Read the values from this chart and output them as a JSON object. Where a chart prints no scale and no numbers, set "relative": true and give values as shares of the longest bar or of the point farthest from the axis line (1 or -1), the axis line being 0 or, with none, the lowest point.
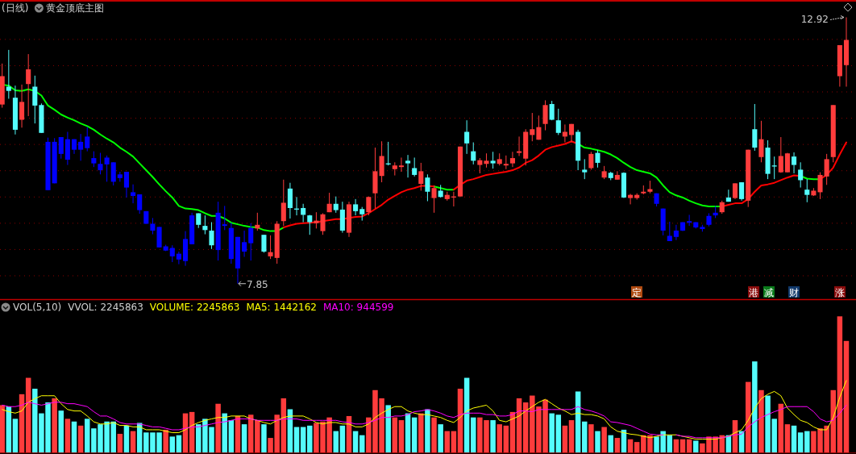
{
  "chart_data": [
    {
      "type": "candlestick",
      "title": "(日线)",
      "subtitle": "黄金顶底主图",
      "categories": [
        null,
        null,
        null,
        null,
        null,
        null,
        null,
        null,
        null,
        null,
        null,
        null,
        null,
        null,
        null,
        null,
        null,
        null,
        null,
        null,
        null,
        null,
        null,
        null,
        null,
        null,
        null,
        null,
        null,
        null,
        null,
        null,
        null,
        null,
        null,
        null,
        null,
        null,
        null,
        null,
        null,
        null,
        null,
        null,
        null,
        null,
        null,
        null,
        null,
        null,
        null,
        null,
        null,
        null,
        null,
        null,
        null,
        null,
        null,
        null,
        null,
        null,
        null,
        null,
        null,
        null,
        null,
        null,
        null,
        null,
        null,
        null,
        null,
        null,
        null,
        null,
        null,
        null,
        null,
        null,
        null,
        null,
        null,
        null,
        null,
        null,
        null,
        null,
        null,
        null,
        null,
        null,
        null,
        null,
        null,
        null,
        null,
        null,
        null,
        null,
        null,
        null,
        null,
        null,
        null,
        null,
        null,
        null,
        null,
        null,
        null,
        null,
        null,
        null,
        null,
        null,
        null,
        null,
        null,
        null,
        null,
        null,
        null,
        null,
        null,
        null,
        null,
        null,
        null,
        null
      ],
      "ohlc": [
        [
          11.26,
          12.04,
          11.2,
          11.8
        ],
        [
          11.6,
          12.3,
          11.37,
          11.52
        ],
        [
          11.39,
          11.62,
          10.69,
          10.78
        ],
        [
          10.97,
          11.64,
          10.82,
          11.31
        ],
        [
          11.65,
          12.22,
          11.04,
          11.93
        ],
        [
          11.6,
          11.81,
          10.9,
          11.24
        ],
        [
          11.25,
          11.28,
          10.72,
          10.72
        ],
        [
          10.55,
          10.63,
          9.63,
          9.63
        ],
        [
          9.76,
          10.62,
          9.76,
          10.55
        ],
        [
          10.64,
          10.64,
          10.23,
          10.32
        ],
        [
          10.21,
          10.74,
          10.11,
          10.6
        ],
        [
          10.6,
          10.6,
          10.32,
          10.4
        ],
        [
          10.4,
          10.7,
          10.19,
          10.55
        ],
        [
          10.65,
          10.83,
          10.37,
          10.43
        ],
        [
          10.24,
          10.37,
          10.07,
          10.14
        ],
        [
          10.13,
          10.34,
          9.93,
          10.01
        ],
        [
          10.25,
          10.29,
          9.79,
          10.12
        ],
        [
          10.16,
          10.16,
          9.72,
          9.79
        ],
        [
          9.86,
          9.98,
          9.79,
          9.93
        ],
        [
          9.98,
          9.98,
          9.49,
          9.68
        ],
        [
          9.52,
          9.74,
          9.38,
          9.59
        ],
        [
          9.55,
          9.55,
          9.18,
          9.25
        ],
        [
          9.23,
          9.23,
          8.99,
          8.99
        ],
        [
          8.99,
          9.1,
          8.79,
          8.86
        ],
        [
          8.93,
          8.93,
          8.54,
          8.54
        ],
        [
          8.48,
          8.59,
          8.47,
          8.56
        ],
        [
          8.53,
          8.58,
          8.26,
          8.37
        ],
        [
          8.42,
          8.46,
          8.22,
          8.31
        ],
        [
          8.28,
          8.85,
          8.19,
          8.7
        ],
        [
          8.6,
          9.2,
          8.6,
          9.15
        ],
        [
          9.19,
          9.19,
          8.91,
          8.97
        ],
        [
          8.95,
          9.15,
          8.79,
          8.87
        ],
        [
          8.86,
          9.02,
          8.51,
          8.58
        ],
        [
          8.49,
          9.41,
          8.29,
          9.2
        ],
        [
          8.98,
          9.33,
          8.87,
          8.95
        ],
        [
          8.91,
          9.01,
          8.23,
          8.32
        ],
        [
          8.14,
          8.74,
          7.85,
          8.74
        ],
        [
          8.64,
          8.86,
          8.36,
          8.46
        ],
        [
          8.62,
          9.0,
          8.29,
          8.91
        ],
        [
          8.9,
          9.2,
          8.86,
          8.97
        ],
        [
          8.78,
          8.78,
          8.44,
          8.46
        ],
        [
          8.37,
          8.77,
          8.32,
          8.45
        ],
        [
          8.34,
          9.04,
          8.23,
          8.99
        ],
        [
          9.04,
          9.83,
          8.95,
          9.39
        ],
        [
          9.66,
          9.77,
          9.09,
          9.29
        ],
        [
          9.28,
          9.5,
          9.15,
          9.26
        ],
        [
          9.29,
          9.37,
          9.02,
          9.16
        ],
        [
          9.15,
          9.16,
          8.78,
          9.02
        ],
        [
          9.0,
          9.21,
          8.9,
          9.05
        ],
        [
          8.85,
          9.19,
          8.78,
          9.17
        ],
        [
          9.21,
          9.58,
          9.21,
          9.37
        ],
        [
          9.37,
          9.51,
          9.2,
          9.25
        ],
        [
          9.26,
          9.41,
          8.82,
          8.86
        ],
        [
          8.82,
          9.41,
          8.74,
          9.36
        ],
        [
          9.36,
          9.46,
          9.15,
          9.23
        ],
        [
          9.27,
          9.31,
          9.05,
          9.17
        ],
        [
          9.21,
          9.51,
          9.15,
          9.5
        ],
        [
          9.57,
          10.44,
          9.28,
          9.99
        ],
        [
          9.9,
          10.56,
          9.78,
          10.28
        ],
        [
          10.14,
          10.55,
          10.1,
          10.12
        ],
        [
          10.03,
          10.16,
          9.91,
          10.1
        ],
        [
          10.07,
          10.25,
          9.98,
          10.1
        ],
        [
          10.19,
          10.3,
          9.87,
          10.14
        ],
        [
          10.05,
          10.25,
          9.89,
          9.92
        ],
        [
          9.75,
          10.15,
          9.62,
          9.99
        ],
        [
          9.87,
          9.93,
          9.42,
          9.6
        ],
        [
          9.48,
          9.72,
          9.2,
          9.67
        ],
        [
          9.62,
          9.73,
          9.49,
          9.5
        ],
        [
          9.46,
          9.6,
          9.43,
          9.54
        ],
        [
          9.49,
          9.6,
          9.32,
          9.51
        ],
        [
          9.51,
          10.46,
          9.51,
          10.46
        ],
        [
          10.74,
          10.96,
          10.32,
          10.52
        ],
        [
          10.37,
          10.54,
          10.12,
          10.19
        ],
        [
          10.11,
          10.24,
          9.95,
          10.2
        ],
        [
          10.13,
          10.33,
          10.06,
          10.19
        ],
        [
          10.19,
          10.36,
          10.04,
          10.14
        ],
        [
          10.13,
          10.33,
          10.1,
          10.22
        ],
        [
          10.1,
          10.29,
          10.03,
          10.13
        ],
        [
          10.14,
          10.36,
          10.07,
          10.24
        ],
        [
          10.34,
          10.65,
          10.28,
          10.37
        ],
        [
          10.23,
          10.79,
          10.1,
          10.74
        ],
        [
          10.68,
          11.1,
          10.56,
          10.79
        ],
        [
          10.59,
          11.05,
          10.59,
          10.83
        ],
        [
          10.89,
          11.34,
          10.77,
          11.25
        ],
        [
          11.27,
          11.33,
          10.96,
          10.97
        ],
        [
          10.96,
          11.18,
          10.68,
          10.72
        ],
        [
          10.65,
          10.88,
          10.54,
          10.74
        ],
        [
          10.68,
          10.89,
          10.54,
          10.89
        ],
        [
          10.74,
          10.78,
          10.01,
          10.19
        ],
        [
          10.02,
          10.22,
          9.84,
          9.97
        ],
        [
          10.05,
          10.36,
          10.02,
          10.32
        ],
        [
          10.34,
          10.39,
          10.06,
          10.15
        ],
        [
          9.87,
          10.09,
          9.84,
          9.99
        ],
        [
          9.96,
          9.98,
          9.82,
          9.86
        ],
        [
          9.83,
          9.99,
          9.83,
          9.92
        ],
        [
          9.96,
          9.97,
          9.48,
          9.49
        ],
        [
          9.48,
          9.56,
          9.36,
          9.54
        ],
        [
          9.48,
          9.57,
          9.45,
          9.54
        ],
        [
          9.57,
          9.72,
          9.55,
          9.6
        ],
        [
          9.6,
          9.81,
          9.57,
          9.65
        ],
        [
          9.57,
          9.57,
          9.32,
          9.37
        ],
        [
          9.28,
          9.28,
          8.77,
          8.86
        ],
        [
          8.76,
          9.03,
          8.66,
          8.66
        ],
        [
          8.74,
          8.97,
          8.68,
          8.86
        ],
        [
          8.86,
          9.02,
          8.85,
          9.02
        ],
        [
          9.01,
          9.16,
          8.95,
          9.04
        ],
        [
          9.02,
          9.02,
          8.9,
          8.92
        ],
        [
          8.89,
          8.97,
          8.84,
          8.93
        ],
        [
          8.97,
          9.19,
          8.94,
          9.14
        ],
        [
          9.15,
          9.33,
          9.1,
          9.2
        ],
        [
          9.21,
          9.43,
          9.18,
          9.4
        ],
        [
          9.49,
          9.64,
          9.41,
          9.41
        ],
        [
          9.48,
          9.76,
          9.46,
          9.76
        ],
        [
          9.78,
          9.78,
          9.43,
          9.46
        ],
        [
          9.43,
          10.4,
          9.31,
          10.4
        ],
        [
          10.79,
          11.27,
          10.38,
          10.44
        ],
        [
          10.26,
          10.95,
          10.16,
          10.6
        ],
        [
          10.44,
          10.58,
          9.84,
          9.94
        ],
        [
          10.1,
          10.27,
          9.84,
          10.08
        ],
        [
          9.97,
          10.64,
          9.96,
          10.28
        ],
        [
          9.97,
          10.34,
          9.97,
          10.33
        ],
        [
          10.27,
          10.35,
          9.95,
          10.11
        ],
        [
          10.02,
          10.16,
          9.68,
          9.82
        ],
        [
          9.64,
          9.84,
          9.4,
          9.54
        ],
        [
          9.53,
          9.67,
          9.52,
          9.62
        ],
        [
          9.59,
          9.97,
          9.46,
          9.92
        ],
        [
          9.89,
          10.32,
          9.73,
          10.22
        ],
        [
          10.26,
          11.25,
          10.16,
          11.25
        ],
        [
          11.8,
          12.39,
          11.6,
          12.39
        ],
        [
          12.01,
          12.92,
          11.6,
          12.49
        ]
      ],
      "colors": [
        "#ff3c3c",
        "#54fcfc",
        "#54fcfc",
        "#ff3c3c",
        "#ff3c3c",
        "#54fcfc",
        "#54fcfc",
        "#0000ff",
        "#0000ff",
        "#0000ff",
        "#0000ff",
        "#0000ff",
        "#0000ff",
        "#0000ff",
        "#0000ff",
        "#0000ff",
        "#0000ff",
        "#0000ff",
        "#0000ff",
        "#0000ff",
        "#0000ff",
        "#0000ff",
        "#0000ff",
        "#0000ff",
        "#0000ff",
        "#0000ff",
        "#0000ff",
        "#0000ff",
        "#0000ff",
        "#0000ff",
        "#54fcfc",
        "#54fcfc",
        "#54fcfc",
        "#0000ff",
        "#0000ff",
        "#0000ff",
        "#0000ff",
        "#0000ff",
        "#0000ff",
        "#ff3c3c",
        "#54fcfc",
        "#ff3c3c",
        "#ff3c3c",
        "#ff3c3c",
        "#54fcfc",
        "#54fcfc",
        "#54fcfc",
        "#54fcfc",
        "#ff3c3c",
        "#ff3c3c",
        "#ff3c3c",
        "#54fcfc",
        "#54fcfc",
        "#ff3c3c",
        "#54fcfc",
        "#54fcfc",
        "#ff3c3c",
        "#ff3c3c",
        "#ff3c3c",
        "#54fcfc",
        "#ff3c3c",
        "#ff3c3c",
        "#54fcfc",
        "#54fcfc",
        "#ff3c3c",
        "#54fcfc",
        "#ff3c3c",
        "#54fcfc",
        "#ff3c3c",
        "#ff3c3c",
        "#ff3c3c",
        "#54fcfc",
        "#54fcfc",
        "#ff3c3c",
        "#ff3c3c",
        "#54fcfc",
        "#ff3c3c",
        "#ff3c3c",
        "#ff3c3c",
        "#ff3c3c",
        "#ff3c3c",
        "#ff3c3c",
        "#ff3c3c",
        "#ff3c3c",
        "#54fcfc",
        "#54fcfc",
        "#ff3c3c",
        "#ff3c3c",
        "#54fcfc",
        "#54fcfc",
        "#ff3c3c",
        "#54fcfc",
        "#ff3c3c",
        "#54fcfc",
        "#ff3c3c",
        "#54fcfc",
        "#ff3c3c",
        "#ff3c3c",
        "#ff3c3c",
        "#ff3c3c",
        "#0000ff",
        "#0000ff",
        "#0000ff",
        "#0000ff",
        "#0000ff",
        "#0000ff",
        "#0000ff",
        "#0000ff",
        "#0000ff",
        "#0000ff",
        "#ff3c3c",
        "#54fcfc",
        "#ff3c3c",
        "#54fcfc",
        "#ff3c3c",
        "#54fcfc",
        "#ff3c3c",
        "#54fcfc",
        "#54fcfc",
        "#ff3c3c",
        "#ff3c3c",
        "#54fcfc",
        "#54fcfc",
        "#54fcfc",
        "#ff3c3c",
        "#ff3c3c",
        "#ff3c3c",
        "#ff3c3c",
        "#ff3c3c",
        "#ff3c3c"
      ],
      "series": [
        {
          "type": "line",
          "color": "#00ff00",
          "values": [
            11.64,
            11.62,
            11.53,
            11.52,
            11.55,
            11.52,
            11.43,
            11.24,
            11.16,
            11.07,
            11.01,
            10.96,
            10.9,
            10.85,
            10.78,
            10.69,
            10.61,
            10.54,
            10.44,
            10.36,
            10.27,
            10.14,
            10.01,
            9.88,
            9.74,
            9.61,
            9.49,
            9.33,
            9.28,
            9.27,
            9.25,
            9.19,
            9.14,
            9.14,
            9.09,
            9.01,
            8.98,
            8.95,
            8.93,
            8.92,
            8.87,
            8.85,
            8.85,
            8.92,
            null,
            null,
            null,
            null,
            null,
            null,
            null,
            null,
            null,
            null,
            null,
            null,
            null,
            null,
            null,
            null,
            null,
            null,
            null,
            null,
            null,
            null,
            9.7,
            9.67,
            9.64,
            9.64,
            null,
            null,
            null,
            null,
            null,
            null,
            null,
            null,
            null,
            null,
            null,
            null,
            null,
            null,
            null,
            null,
            null,
            null,
            10.51,
            10.44,
            10.42,
            10.39,
            10.36,
            10.31,
            10.24,
            10.15,
            10.07,
            10.01,
            9.98,
            9.95,
            9.87,
            9.72,
            9.59,
            9.53,
            9.49,
            9.43,
            9.38,
            9.34,
            9.32,
            9.32,
            9.32,
            null,
            null,
            null,
            null,
            null,
            null,
            null,
            null,
            null,
            null,
            null,
            9.9,
            9.85,
            9.84,
            9.84,
            null,
            null,
            null,
            null
          ]
        },
        {
          "type": "line",
          "color": "#ff0000",
          "values": [
            null,
            null,
            null,
            null,
            null,
            null,
            null,
            null,
            null,
            null,
            null,
            null,
            null,
            null,
            null,
            null,
            null,
            null,
            null,
            null,
            null,
            null,
            null,
            null,
            null,
            null,
            null,
            null,
            null,
            null,
            null,
            null,
            null,
            null,
            null,
            null,
            null,
            null,
            null,
            null,
            null,
            null,
            null,
            8.92,
            8.96,
            8.99,
            9.0,
            9.01,
            9.02,
            9.04,
            9.06,
            9.08,
            9.08,
            9.1,
            9.12,
            9.13,
            9.19,
            9.27,
            9.35,
            9.45,
            9.52,
            9.59,
            9.64,
            9.67,
            9.71,
            9.71,
            9.7,
            null,
            null,
            9.64,
            9.73,
            9.81,
            9.84,
            9.88,
            9.92,
            9.94,
            9.96,
            9.98,
            10.01,
            10.06,
            10.15,
            10.2,
            10.29,
            10.4,
            10.45,
            10.48,
            10.51,
            10.56,
            10.51,
            null,
            null,
            null,
            null,
            null,
            null,
            null,
            null,
            null,
            null,
            null,
            null,
            null,
            null,
            null,
            null,
            null,
            null,
            null,
            null,
            null,
            9.32,
            9.35,
            9.38,
            9.38,
            9.46,
            9.6,
            9.72,
            9.74,
            9.77,
            9.82,
            9.87,
            9.91,
            9.9,
            null,
            null,
            9.84,
            9.92,
            10.06,
            10.31,
            10.54
          ]
        }
      ],
      "ylim": [
        7.57,
        13.25
      ],
      "yticks": [
        {
          "value": 8,
          "label": null
        },
        {
          "value": 8.5,
          "label": null
        },
        {
          "value": 9,
          "label": null
        },
        {
          "value": 9.5,
          "label": null
        },
        {
          "value": 10,
          "label": null
        },
        {
          "value": 10.5,
          "label": null
        },
        {
          "value": 11,
          "label": null
        },
        {
          "value": 11.5,
          "label": null
        },
        {
          "value": 12,
          "label": null
        },
        {
          "value": 12.5,
          "label": null
        }
      ],
      "grid": "y",
      "annotations": [
        "12.92",
        "7.85",
        "定",
        "港",
        "减",
        "财",
        "涨"
      ]
    },
    {
      "type": "bar",
      "title": "VOL(5,10)",
      "relative": true,
      "annotations": [
        "VVOL: 2245863",
        "VOLUME: 2245863"
      ],
      "categories": [
        null,
        null,
        null,
        null,
        null,
        null,
        null,
        null,
        null,
        null,
        null,
        null,
        null,
        null,
        null,
        null,
        null,
        null,
        null,
        null,
        null,
        null,
        null,
        null,
        null,
        null,
        null,
        null,
        null,
        null,
        null,
        null,
        null,
        null,
        null,
        null,
        null,
        null,
        null,
        null,
        null,
        null,
        null,
        null,
        null,
        null,
        null,
        null,
        null,
        null,
        null,
        null,
        null,
        null,
        null,
        null,
        null,
        null,
        null,
        null,
        null,
        null,
        null,
        null,
        null,
        null,
        null,
        null,
        null,
        null,
        null,
        null,
        null,
        null,
        null,
        null,
        null,
        null,
        null,
        null,
        null,
        null,
        null,
        null,
        null,
        null,
        null,
        null,
        null,
        null,
        null,
        null,
        null,
        null,
        null,
        null,
        null,
        null,
        null,
        null,
        null,
        null,
        null,
        null,
        null,
        null,
        null,
        null,
        null,
        null,
        null,
        null,
        null,
        null,
        null,
        null,
        null,
        null,
        null,
        null,
        null,
        null,
        null,
        null,
        null,
        null,
        null,
        null,
        null,
        null
      ],
      "values": [
        0.35,
        0.34,
        0.25,
        0.43,
        0.55,
        0.47,
        0.29,
        0.37,
        0.4,
        0.31,
        0.25,
        0.23,
        0.2,
        0.25,
        0.18,
        0.21,
        0.23,
        0.23,
        0.14,
        0.2,
        0.16,
        0.22,
        0.15,
        0.15,
        0.15,
        0.17,
        0.12,
        0.13,
        0.29,
        0.3,
        0.21,
        0.25,
        0.19,
        0.36,
        0.29,
        0.24,
        0.27,
        0.21,
        0.28,
        0.24,
        0.21,
        0.11,
        0.28,
        0.4,
        0.32,
        0.19,
        0.19,
        0.2,
        0.22,
        0.23,
        0.26,
        0.16,
        0.2,
        0.27,
        0.16,
        0.13,
        0.26,
        0.46,
        0.4,
        0.35,
        0.26,
        0.24,
        0.29,
        0.26,
        0.29,
        0.32,
        0.26,
        0.21,
        0.16,
        0.16,
        0.47,
        0.55,
        0.26,
        0.26,
        0.24,
        0.24,
        0.21,
        0.2,
        0.3,
        0.4,
        0.37,
        0.42,
        0.34,
        0.39,
        0.29,
        0.28,
        0.2,
        0.24,
        0.45,
        0.23,
        0.21,
        0.16,
        0.19,
        0.13,
        0.11,
        0.17,
        0.1,
        0.08,
        0.13,
        0.13,
        0.12,
        0.16,
        0.13,
        0.1,
        0.1,
        0.1,
        0.09,
        0.07,
        0.12,
        0.12,
        0.13,
        0.13,
        0.24,
        0.16,
        0.52,
        0.67,
        0.46,
        0.42,
        0.25,
        0.36,
        0.21,
        0.2,
        0.15,
        0.16,
        0.16,
        0.18,
        0.2,
        0.46,
        1.0,
        0.82
      ],
      "colors": [
        "#ff3c3c",
        "#54fcfc",
        "#54fcfc",
        "#ff3c3c",
        "#ff3c3c",
        "#54fcfc",
        "#54fcfc",
        "#54fcfc",
        "#ff3c3c",
        "#54fcfc",
        "#ff3c3c",
        "#54fcfc",
        "#ff3c3c",
        "#54fcfc",
        "#54fcfc",
        "#54fcfc",
        "#54fcfc",
        "#54fcfc",
        "#ff3c3c",
        "#54fcfc",
        "#ff3c3c",
        "#54fcfc",
        "#54fcfc",
        "#54fcfc",
        "#54fcfc",
        "#ff3c3c",
        "#54fcfc",
        "#54fcfc",
        "#ff3c3c",
        "#ff3c3c",
        "#54fcfc",
        "#54fcfc",
        "#54fcfc",
        "#ff3c3c",
        "#54fcfc",
        "#54fcfc",
        "#ff3c3c",
        "#54fcfc",
        "#ff3c3c",
        "#ff3c3c",
        "#54fcfc",
        "#ff3c3c",
        "#ff3c3c",
        "#ff3c3c",
        "#54fcfc",
        "#54fcfc",
        "#54fcfc",
        "#54fcfc",
        "#ff3c3c",
        "#ff3c3c",
        "#ff3c3c",
        "#54fcfc",
        "#54fcfc",
        "#ff3c3c",
        "#54fcfc",
        "#54fcfc",
        "#ff3c3c",
        "#ff3c3c",
        "#ff3c3c",
        "#54fcfc",
        "#ff3c3c",
        "#ff3c3c",
        "#54fcfc",
        "#54fcfc",
        "#ff3c3c",
        "#54fcfc",
        "#ff3c3c",
        "#54fcfc",
        "#ff3c3c",
        "#ff3c3c",
        "#ff3c3c",
        "#54fcfc",
        "#54fcfc",
        "#ff3c3c",
        "#ff3c3c",
        "#54fcfc",
        "#ff3c3c",
        "#ff3c3c",
        "#ff3c3c",
        "#ff3c3c",
        "#ff3c3c",
        "#ff3c3c",
        "#ff3c3c",
        "#ff3c3c",
        "#54fcfc",
        "#54fcfc",
        "#ff3c3c",
        "#ff3c3c",
        "#54fcfc",
        "#54fcfc",
        "#ff3c3c",
        "#54fcfc",
        "#ff3c3c",
        "#54fcfc",
        "#ff3c3c",
        "#54fcfc",
        "#ff3c3c",
        "#ff3c3c",
        "#ff3c3c",
        "#ff3c3c",
        "#54fcfc",
        "#54fcfc",
        "#54fcfc",
        "#ff3c3c",
        "#ff3c3c",
        "#ff3c3c",
        "#54fcfc",
        "#ff3c3c",
        "#ff3c3c",
        "#ff3c3c",
        "#ff3c3c",
        "#54fcfc",
        "#ff3c3c",
        "#54fcfc",
        "#ff3c3c",
        "#54fcfc",
        "#ff3c3c",
        "#54fcfc",
        "#54fcfc",
        "#ff3c3c",
        "#ff3c3c",
        "#54fcfc",
        "#54fcfc",
        "#54fcfc",
        "#ff3c3c",
        "#ff3c3c",
        "#ff3c3c",
        "#ff3c3c",
        "#ff3c3c",
        "#ff3c3c"
      ]
    },
    {
      "type": "line",
      "relative": true,
      "categories": [
        null,
        null,
        null,
        null,
        null,
        null,
        null,
        null,
        null,
        null,
        null,
        null,
        null,
        null,
        null,
        null,
        null,
        null,
        null,
        null,
        null,
        null,
        null,
        null,
        null,
        null,
        null,
        null,
        null,
        null,
        null,
        null,
        null,
        null,
        null,
        null,
        null,
        null,
        null,
        null,
        null,
        null,
        null,
        null,
        null,
        null,
        null,
        null,
        null,
        null,
        null,
        null,
        null,
        null,
        null,
        null,
        null,
        null,
        null,
        null,
        null,
        null,
        null,
        null,
        null,
        null,
        null,
        null,
        null,
        null,
        null,
        null,
        null,
        null,
        null,
        null,
        null,
        null,
        null,
        null,
        null,
        null,
        null,
        null,
        null,
        null,
        null,
        null,
        null,
        null,
        null,
        null,
        null,
        null,
        null,
        null,
        null,
        null,
        null,
        null,
        null,
        null,
        null,
        null,
        null,
        null,
        null,
        null,
        null,
        null,
        null,
        null,
        null,
        null,
        null,
        null,
        null,
        null,
        null,
        null,
        null,
        null,
        null,
        null,
        null,
        null,
        null,
        null,
        null,
        null
      ],
      "series": [
        {
          "name": "MA5: 1442162",
          "color": "#ffff00",
          "values": [
            0.6,
            0.57,
            0.55,
            0.58,
            0.7,
            0.75,
            0.79,
            0.79,
            0.79,
            0.68,
            0.6,
            0.58,
            0.58,
            0.51,
            0.43,
            0.4,
            0.4,
            0.42,
            0.38,
            0.38,
            0.36,
            0.36,
            0.32,
            0.32,
            0.32,
            0.3,
            0.28,
            0.28,
            0.32,
            0.38,
            0.42,
            0.45,
            0.47,
            0.49,
            0.49,
            0.51,
            0.51,
            0.51,
            0.47,
            0.45,
            0.42,
            0.4,
            0.45,
            0.49,
            0.51,
            0.51,
            0.51,
            0.47,
            0.42,
            0.4,
            0.42,
            0.42,
            0.4,
            0.4,
            0.36,
            0.36,
            0.4,
            0.49,
            0.55,
            0.6,
            0.64,
            0.64,
            0.58,
            0.55,
            0.53,
            0.53,
            0.51,
            0.49,
            0.45,
            0.42,
            0.49,
            0.58,
            0.62,
            0.64,
            0.66,
            0.58,
            0.45,
            0.43,
            0.47,
            0.51,
            0.58,
            0.64,
            0.7,
            0.74,
            0.68,
            0.62,
            0.58,
            0.53,
            0.55,
            0.53,
            0.53,
            0.51,
            0.47,
            0.36,
            0.3,
            0.28,
            0.26,
            0.25,
            0.23,
            0.21,
            0.23,
            0.25,
            0.25,
            0.25,
            0.23,
            0.21,
            0.19,
            0.19,
            0.19,
            0.19,
            0.21,
            0.23,
            0.28,
            0.32,
            0.45,
            0.62,
            0.75,
            0.81,
            0.85,
            0.79,
            0.62,
            0.53,
            0.45,
            0.42,
            0.36,
            0.32,
            0.32,
            0.49,
            0.77,
            1.0
          ]
        },
        {
          "name": "MA10: 944599",
          "color": "#ff00ff",
          "values": [
            0.66,
            0.64,
            0.64,
            0.66,
            0.7,
            0.68,
            0.66,
            0.68,
            0.7,
            0.7,
            0.68,
            0.68,
            0.66,
            0.64,
            0.57,
            0.51,
            0.51,
            0.47,
            0.42,
            0.4,
            0.4,
            0.4,
            0.38,
            0.36,
            0.36,
            0.34,
            0.32,
            0.32,
            0.34,
            0.36,
            0.36,
            0.38,
            0.4,
            0.42,
            0.43,
            0.45,
            0.47,
            0.47,
            0.47,
            0.45,
            0.45,
            0.45,
            0.45,
            0.47,
            0.47,
            0.47,
            0.45,
            0.45,
            0.45,
            0.45,
            0.45,
            0.45,
            0.43,
            0.42,
            0.4,
            0.4,
            0.42,
            0.45,
            0.49,
            0.49,
            0.51,
            0.51,
            0.53,
            0.57,
            0.58,
            0.6,
            0.58,
            0.55,
            0.51,
            0.49,
            0.53,
            0.55,
            0.55,
            0.55,
            0.53,
            0.53,
            0.51,
            0.51,
            0.53,
            0.58,
            0.58,
            0.57,
            0.6,
            0.6,
            0.6,
            0.6,
            0.6,
            0.6,
            0.64,
            0.6,
            0.58,
            0.55,
            0.51,
            0.43,
            0.42,
            0.4,
            0.38,
            0.34,
            0.3,
            0.26,
            0.25,
            0.25,
            null,
            0.25,
            0.23,
            0.23,
            0.21,
            0.21,
            0.21,
            0.21,
            0.21,
            0.23,
            0.25,
            0.26,
            0.36,
            0.43,
            0.49,
            0.53,
            0.57,
            0.6,
            0.64,
            0.64,
            0.64,
            0.64,
            0.57,
            0.47,
            0.43,
            0.45,
            0.55,
            0.66
          ]
        }
      ]
    }
  ]
}
